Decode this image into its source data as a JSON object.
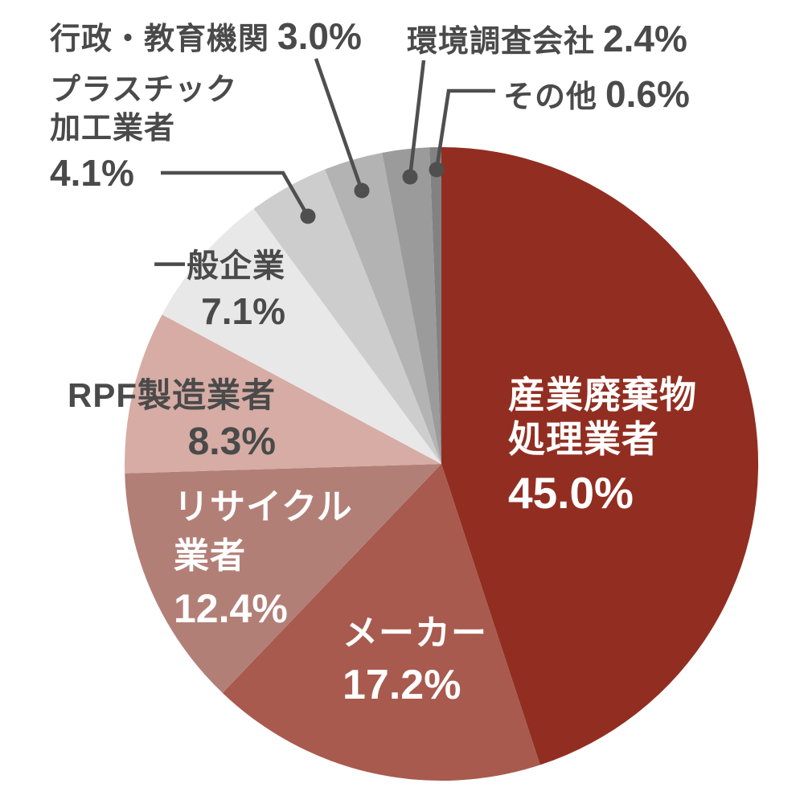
{
  "chart_data": {
    "type": "pie",
    "title": "",
    "unit": "%",
    "start_angle_deg": 0,
    "direction": "clockwise",
    "background": "#ffffff",
    "outside_label_color": "#4a4a4a",
    "inside_label_color": "#ffffff",
    "callout_line_color": "#4f4f4f",
    "slices": [
      {
        "label": "産業廃棄物処理業者",
        "lines": [
          "産業廃棄物",
          "処理業者"
        ],
        "value": 45.0,
        "pct": "45.0%",
        "color": "#922e21",
        "label_placement": "inside"
      },
      {
        "label": "メーカー",
        "lines": [
          "メーカー"
        ],
        "value": 17.2,
        "pct": "17.2%",
        "color": "#a85a4e",
        "label_placement": "inside"
      },
      {
        "label": "リサイクル業者",
        "lines": [
          "リサイクル",
          "業者"
        ],
        "value": 12.4,
        "pct": "12.4%",
        "color": "#b27f77",
        "label_placement": "inside"
      },
      {
        "label": "RPF製造業者",
        "lines": [
          "RPF製造業者"
        ],
        "value": 8.3,
        "pct": "8.3%",
        "color": "#d6aca5",
        "label_placement": "outside"
      },
      {
        "label": "一般企業",
        "lines": [
          "一般企業"
        ],
        "value": 7.1,
        "pct": "7.1%",
        "color": "#e9e8e8",
        "label_placement": "outside"
      },
      {
        "label": "プラスチック加工業者",
        "lines": [
          "プラスチック",
          "加工業者"
        ],
        "value": 4.1,
        "pct": "4.1%",
        "color": "#cecdcd",
        "label_placement": "callout"
      },
      {
        "label": "行政・教育機関",
        "lines": [
          "行政・教育機関"
        ],
        "value": 3.0,
        "pct": "3.0%",
        "color": "#b4b3b3",
        "label_placement": "callout"
      },
      {
        "label": "環境調査会社",
        "lines": [
          "環境調査会社"
        ],
        "value": 2.4,
        "pct": "2.4%",
        "color": "#9c9b9b",
        "label_placement": "callout"
      },
      {
        "label": "その他",
        "lines": [
          "その他"
        ],
        "value": 0.6,
        "pct": "0.6%",
        "color": "#838282",
        "label_placement": "callout"
      }
    ]
  }
}
